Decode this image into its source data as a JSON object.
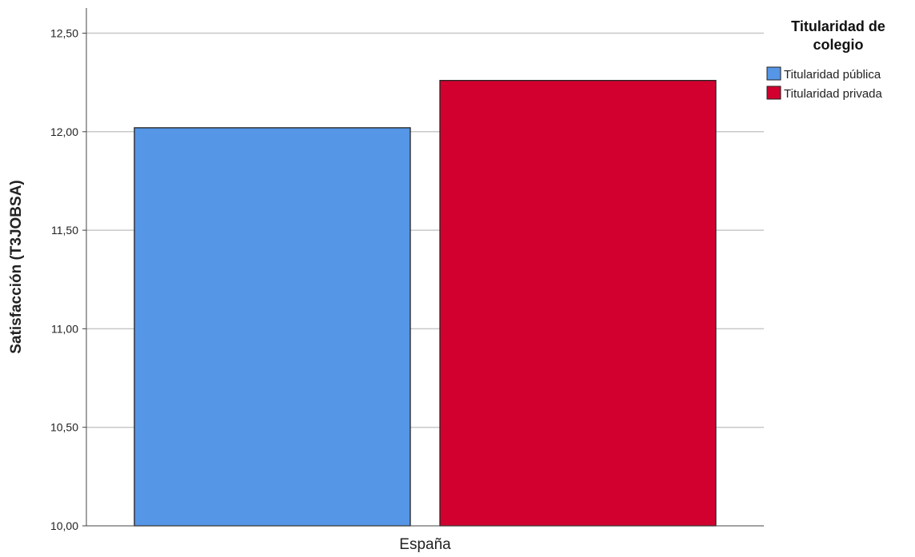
{
  "chart_data": {
    "type": "bar",
    "title": "",
    "xlabel": "",
    "ylabel": "Satisfacción (T3JOBSA)",
    "categories": [
      "España"
    ],
    "series": [
      {
        "name": "Titularidad pública",
        "values": [
          12.02
        ],
        "color": "#5596e6"
      },
      {
        "name": "Titularidad privada",
        "values": [
          12.26
        ],
        "color": "#d2002e"
      }
    ],
    "ylim": [
      10.0,
      12.5
    ],
    "yticks": [
      10.0,
      10.5,
      11.0,
      11.5,
      12.0,
      12.5
    ],
    "ytick_labels": [
      "10,00",
      "10,50",
      "11,00",
      "11,50",
      "12,00",
      "12,50"
    ],
    "grid": true,
    "legend": {
      "title_lines": [
        "Titularidad de",
        "colegio"
      ],
      "placement": "top-right"
    }
  }
}
